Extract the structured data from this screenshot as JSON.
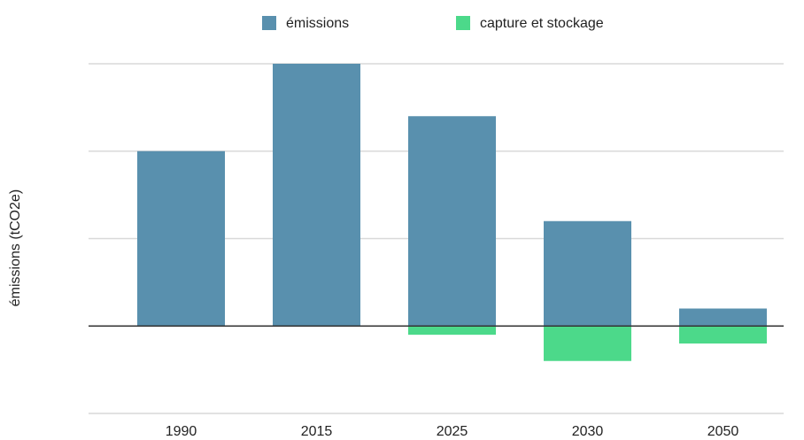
{
  "chart_data": {
    "type": "bar",
    "y_label": "émissions (tCO2e)",
    "categories": [
      "1990",
      "2015",
      "2025",
      "2030",
      "2050"
    ],
    "series": [
      {
        "name": "émissions",
        "color": "#5990ae",
        "values": [
          2,
          3,
          2.4,
          1.2,
          0.2
        ]
      },
      {
        "name": "capture et stockage",
        "color": "#4cd98a",
        "values": [
          null,
          null,
          -0.1,
          -0.4,
          -0.2
        ]
      }
    ],
    "ylim": [
      -1,
      3
    ],
    "yticks": [
      -1,
      0,
      1,
      2,
      3
    ],
    "grid": true,
    "legend": "top"
  }
}
